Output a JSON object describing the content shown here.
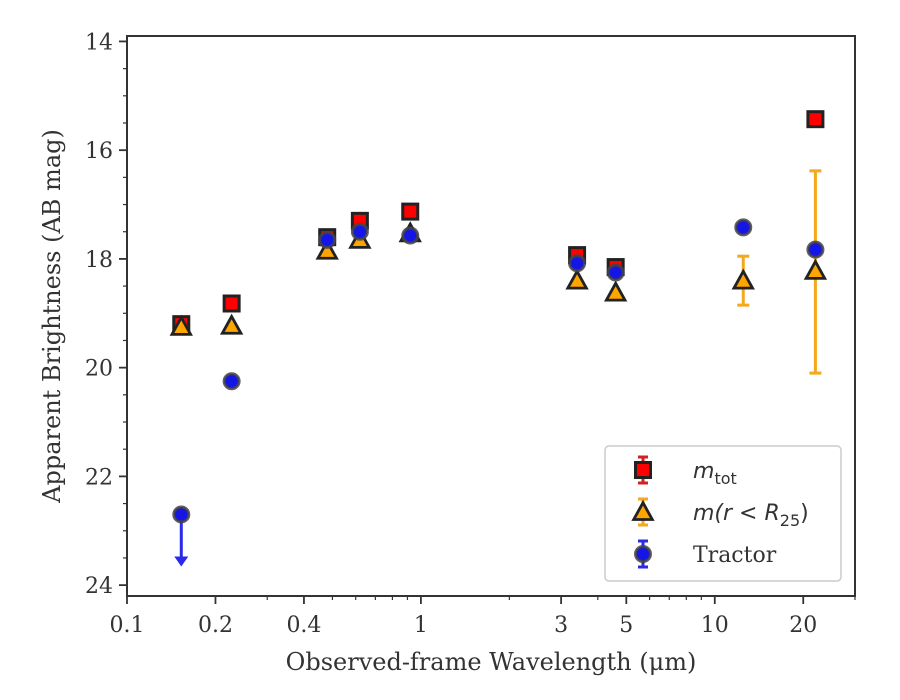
{
  "chart_data": {
    "type": "scatter",
    "xlabel": "Observed-frame Wavelength (μm)",
    "ylabel": "Apparent Brightness (AB mag)",
    "xscale": "log",
    "xlim": [
      0.1,
      30
    ],
    "ylim": [
      24.2,
      13.9
    ],
    "y_inverted": true,
    "x_ticks": [
      0.1,
      0.2,
      0.4,
      1,
      3,
      5,
      10,
      20
    ],
    "x_tick_labels": [
      "0.1",
      "0.2",
      "0.4",
      "1",
      "3",
      "5",
      "10",
      "20"
    ],
    "y_ticks": [
      14,
      16,
      18,
      20,
      22,
      24
    ],
    "y_tick_labels": [
      "14",
      "16",
      "18",
      "20",
      "22",
      "24"
    ],
    "legend_position": "lower-right",
    "series": [
      {
        "name": "m_tot",
        "legend_label": {
          "main": "m",
          "sub": "tot"
        },
        "marker": "square",
        "color": "#ff0000",
        "edge": "#222222",
        "error_color": "#d62020",
        "points": [
          {
            "x": 0.153,
            "y": 19.2
          },
          {
            "x": 0.227,
            "y": 18.82
          },
          {
            "x": 0.48,
            "y": 17.6
          },
          {
            "x": 0.62,
            "y": 17.3
          },
          {
            "x": 0.92,
            "y": 17.13
          },
          {
            "x": 3.4,
            "y": 17.93
          },
          {
            "x": 4.6,
            "y": 18.15
          },
          {
            "x": 22.0,
            "y": 15.43
          }
        ]
      },
      {
        "name": "m(r < R25)",
        "legend_label": {
          "main": "m(r < R",
          "sub": "25",
          "tail": ")"
        },
        "marker": "triangle",
        "color": "#ffa500",
        "edge": "#222222",
        "error_color": "#f5a81c",
        "points": [
          {
            "x": 0.153,
            "y": 19.25
          },
          {
            "x": 0.227,
            "y": 19.23
          },
          {
            "x": 0.48,
            "y": 17.85
          },
          {
            "x": 0.62,
            "y": 17.65
          },
          {
            "x": 0.92,
            "y": 17.53
          },
          {
            "x": 3.4,
            "y": 18.4
          },
          {
            "x": 4.6,
            "y": 18.62
          },
          {
            "x": 12.5,
            "y": 18.4,
            "yerr_low": 17.95,
            "yerr_high": 18.85
          },
          {
            "x": 22.0,
            "y": 18.22,
            "yerr_low": 16.38,
            "yerr_high": 20.1
          }
        ]
      },
      {
        "name": "Tractor",
        "legend_label": {
          "main": "Tractor"
        },
        "marker": "circle",
        "color": "#1515e6",
        "edge": "#444444",
        "error_color": "#2a2ae8",
        "points": [
          {
            "x": 0.153,
            "y": 22.7,
            "upper_limit": true
          },
          {
            "x": 0.227,
            "y": 20.25
          },
          {
            "x": 0.48,
            "y": 17.65
          },
          {
            "x": 0.62,
            "y": 17.5
          },
          {
            "x": 0.92,
            "y": 17.57
          },
          {
            "x": 3.4,
            "y": 18.08
          },
          {
            "x": 4.6,
            "y": 18.25
          },
          {
            "x": 12.5,
            "y": 17.42
          },
          {
            "x": 22.0,
            "y": 17.83
          }
        ]
      }
    ]
  }
}
